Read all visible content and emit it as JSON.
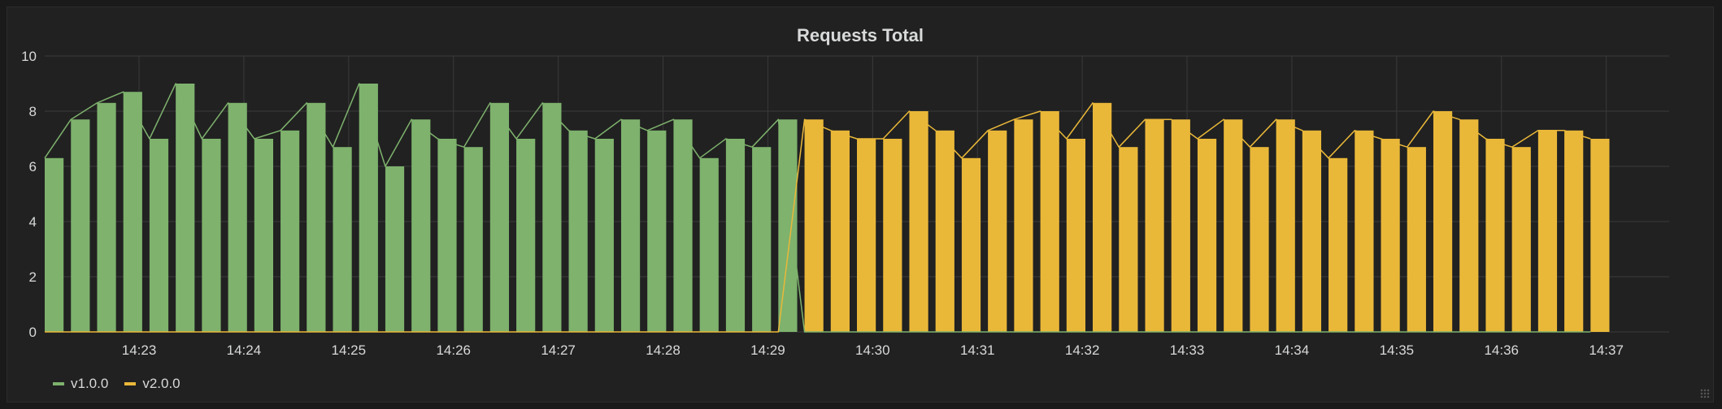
{
  "panel": {
    "title": "Requests Total"
  },
  "chart_data": {
    "type": "bar",
    "title": "Requests Total",
    "xlabel": "",
    "ylabel": "",
    "ylim": [
      0,
      10
    ],
    "y_ticks": [
      0,
      2,
      4,
      6,
      8,
      10
    ],
    "x_tick_labels": [
      "14:23",
      "14:24",
      "14:25",
      "14:26",
      "14:27",
      "14:28",
      "14:29",
      "14:30",
      "14:31",
      "14:32",
      "14:33",
      "14:34",
      "14:35",
      "14:36",
      "14:37"
    ],
    "x_start": "14:22:06",
    "interval_seconds": 15,
    "grid": true,
    "legend_position": "bottom-left",
    "series": [
      {
        "name": "v1.0.0",
        "color": "#7eb26d",
        "values": [
          6.3,
          7.7,
          8.3,
          8.7,
          7.0,
          9.0,
          7.0,
          8.3,
          7.0,
          7.3,
          8.3,
          6.7,
          9.0,
          6.0,
          7.7,
          7.0,
          6.7,
          8.3,
          7.0,
          8.3,
          7.3,
          7.0,
          7.7,
          7.3,
          7.7,
          6.3,
          7.0,
          6.7,
          7.7,
          0,
          0,
          0,
          0,
          0,
          0,
          0,
          0,
          0,
          0,
          0,
          0,
          0,
          0,
          0,
          0,
          0,
          0,
          0,
          0,
          0,
          0,
          0,
          0,
          0,
          0,
          0,
          0,
          0,
          0,
          0
        ]
      },
      {
        "name": "v2.0.0",
        "color": "#eab839",
        "values": [
          0,
          0,
          0,
          0,
          0,
          0,
          0,
          0,
          0,
          0,
          0,
          0,
          0,
          0,
          0,
          0,
          0,
          0,
          0,
          0,
          0,
          0,
          0,
          0,
          0,
          0,
          0,
          0,
          0,
          7.7,
          7.3,
          7.0,
          7.0,
          8.0,
          7.3,
          6.3,
          7.3,
          7.7,
          8.0,
          7.0,
          8.3,
          6.7,
          7.7,
          7.7,
          7.0,
          7.7,
          6.7,
          7.7,
          7.3,
          6.3,
          7.3,
          7.0,
          6.7,
          8.0,
          7.7,
          7.0,
          6.7,
          7.3,
          7.3,
          7.0
        ]
      }
    ]
  }
}
